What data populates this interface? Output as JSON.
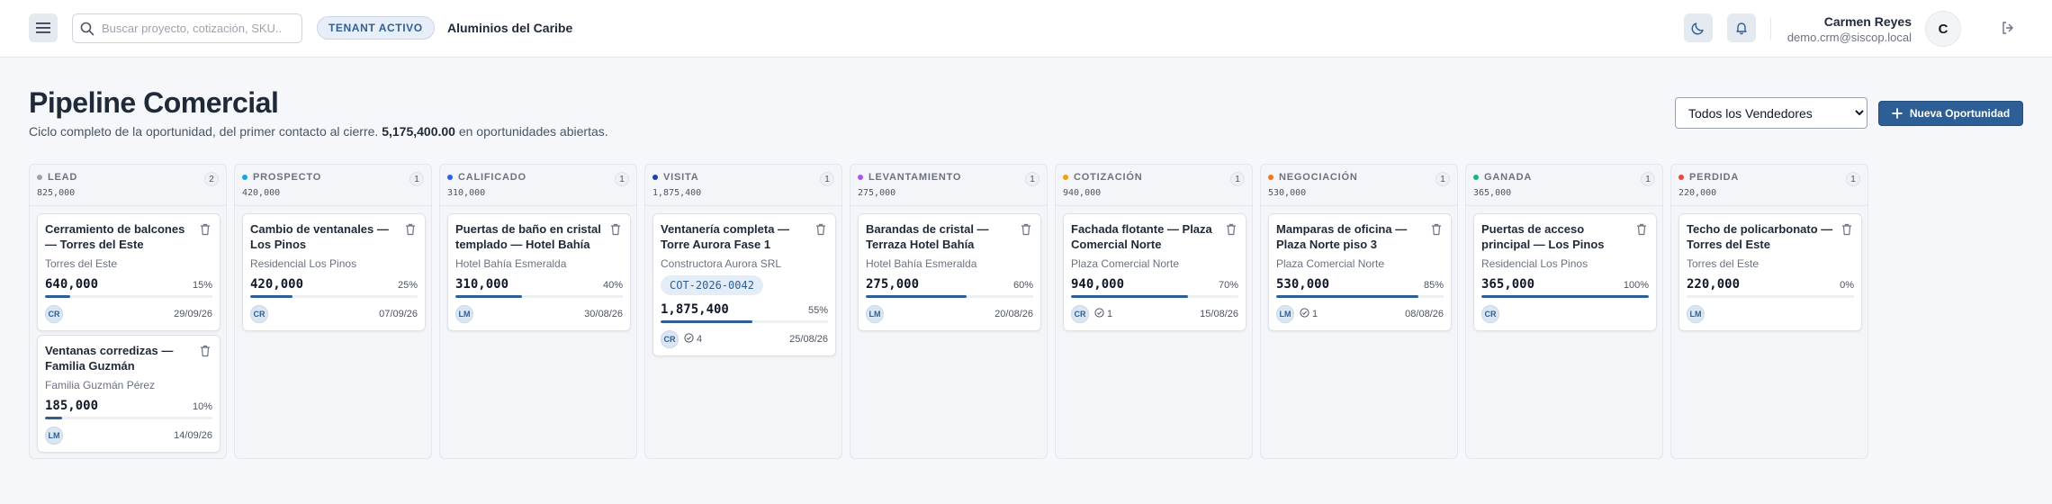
{
  "header": {
    "search_placeholder": "Buscar proyecto, cotización, SKU...",
    "tenant_badge": "TENANT ACTIVO",
    "tenant_name": "Aluminios del Caribe",
    "user_name": "Carmen Reyes",
    "user_email": "demo.crm@siscop.local",
    "user_initial": "C"
  },
  "page": {
    "title": "Pipeline Comercial",
    "subtitle_prefix": "Ciclo completo de la oportunidad, del primer contacto al cierre.",
    "subtitle_amount": "5,175,400.00",
    "subtitle_suffix": "en oportunidades abiertas.",
    "seller_filter": "Todos los Vendedores",
    "new_button": "Nueva Oportunidad"
  },
  "columns": [
    {
      "name": "LEAD",
      "count": "2",
      "total": "825,000",
      "color": "#9ca3af",
      "cards": [
        {
          "title": "Cerramiento de balcones — Torres del Este",
          "client": "Torres del Este",
          "amount": "640,000",
          "probability": "15%",
          "progress": 15,
          "owner": "CR",
          "tasks": "",
          "date": "29/09/26"
        },
        {
          "title": "Ventanas corredizas — Familia Guzmán",
          "client": "Familia Guzmán Pérez",
          "amount": "185,000",
          "probability": "10%",
          "progress": 10,
          "owner": "LM",
          "tasks": "",
          "date": "14/09/26"
        }
      ]
    },
    {
      "name": "PROSPECTO",
      "count": "1",
      "total": "420,000",
      "color": "#0ea5e9",
      "cards": [
        {
          "title": "Cambio de ventanales — Los Pinos",
          "client": "Residencial Los Pinos",
          "amount": "420,000",
          "probability": "25%",
          "progress": 25,
          "owner": "CR",
          "tasks": "",
          "date": "07/09/26"
        }
      ]
    },
    {
      "name": "CALIFICADO",
      "count": "1",
      "total": "310,000",
      "color": "#2563eb",
      "cards": [
        {
          "title": "Puertas de baño en cristal templado — Hotel Bahía",
          "client": "Hotel Bahía Esmeralda",
          "amount": "310,000",
          "probability": "40%",
          "progress": 40,
          "owner": "LM",
          "tasks": "",
          "date": "30/08/26"
        }
      ]
    },
    {
      "name": "VISITA",
      "count": "1",
      "total": "1,875,400",
      "color": "#1e40af",
      "cards": [
        {
          "title": "Ventanería completa — Torre Aurora Fase 1",
          "client": "Constructora Aurora SRL",
          "quote": "COT-2026-0042",
          "amount": "1,875,400",
          "probability": "55%",
          "progress": 55,
          "owner": "CR",
          "tasks": "4",
          "date": "25/08/26"
        }
      ]
    },
    {
      "name": "LEVANTAMIENTO",
      "count": "1",
      "total": "275,000",
      "color": "#a855f7",
      "cards": [
        {
          "title": "Barandas de cristal — Terraza Hotel Bahía",
          "client": "Hotel Bahía Esmeralda",
          "amount": "275,000",
          "probability": "60%",
          "progress": 60,
          "owner": "LM",
          "tasks": "",
          "date": "20/08/26"
        }
      ]
    },
    {
      "name": "COTIZACIÓN",
      "count": "1",
      "total": "940,000",
      "color": "#f59e0b",
      "cards": [
        {
          "title": "Fachada flotante — Plaza Comercial Norte",
          "client": "Plaza Comercial Norte",
          "amount": "940,000",
          "probability": "70%",
          "progress": 70,
          "owner": "CR",
          "tasks": "1",
          "date": "15/08/26"
        }
      ]
    },
    {
      "name": "NEGOCIACIÓN",
      "count": "1",
      "total": "530,000",
      "color": "#f97316",
      "cards": [
        {
          "title": "Mamparas de oficina — Plaza Norte piso 3",
          "client": "Plaza Comercial Norte",
          "amount": "530,000",
          "probability": "85%",
          "progress": 85,
          "owner": "LM",
          "tasks": "1",
          "date": "08/08/26"
        }
      ]
    },
    {
      "name": "GANADA",
      "count": "1",
      "total": "365,000",
      "color": "#10b981",
      "cards": [
        {
          "title": "Puertas de acceso principal — Los Pinos",
          "client": "Residencial Los Pinos",
          "amount": "365,000",
          "probability": "100%",
          "progress": 100,
          "owner": "CR",
          "tasks": "",
          "date": ""
        }
      ]
    },
    {
      "name": "PERDIDA",
      "count": "1",
      "total": "220,000",
      "color": "#ef4444",
      "cards": [
        {
          "title": "Techo de policarbonato — Torres del Este",
          "client": "Torres del Este",
          "amount": "220,000",
          "probability": "0%",
          "progress": 0,
          "owner": "LM",
          "tasks": "",
          "date": ""
        }
      ]
    }
  ]
}
